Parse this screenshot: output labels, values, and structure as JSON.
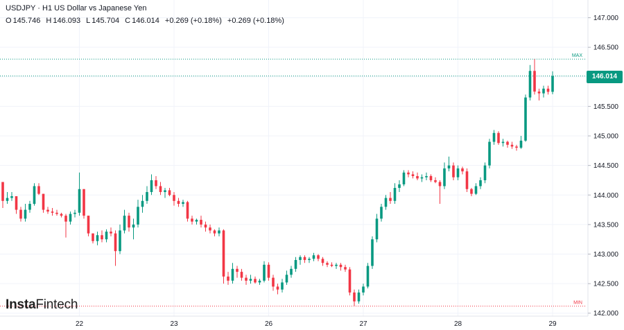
{
  "header": {
    "symbol": "USDJPY",
    "separator": "·",
    "interval": "H1",
    "description": "US Dollar vs Japanese Yen",
    "ohlc": [
      {
        "key": "O",
        "value": "145.746"
      },
      {
        "key": "H",
        "value": "146.093"
      },
      {
        "key": "L",
        "value": "145.704"
      },
      {
        "key": "C",
        "value": "146.014"
      }
    ],
    "change": "+0.269 (+0.18%)",
    "change_repeat": "+0.269 (+0.18%)"
  },
  "price_label": "146.014",
  "logo": {
    "part1": "Insta",
    "part2": "Fintech"
  },
  "colors": {
    "up": "#089981",
    "down": "#f23645",
    "max_line": "#089981",
    "min_line": "#f23645",
    "grid": "#f0f3fa"
  },
  "chart_data": {
    "type": "candlestick",
    "y_ticks": [
      "142.000",
      "142.500",
      "143.000",
      "143.500",
      "144.000",
      "144.500",
      "145.000",
      "145.500",
      "146.000",
      "146.500",
      "147.000"
    ],
    "ylim": [
      141.95,
      147.3
    ],
    "x_ticks": [
      {
        "label": "22",
        "index": 17
      },
      {
        "label": "23",
        "index": 38
      },
      {
        "label": "26",
        "index": 59
      },
      {
        "label": "27",
        "index": 80
      },
      {
        "label": "28",
        "index": 101
      },
      {
        "label": "29",
        "index": 122
      }
    ],
    "max": {
      "label": "MAX",
      "value": 146.3
    },
    "min": {
      "label": "MIN",
      "value": 142.12
    },
    "last_price": 146.014,
    "candles": [
      [
        144.22,
        144.22,
        143.78,
        143.9
      ],
      [
        143.9,
        144.05,
        143.85,
        143.95
      ],
      [
        143.95,
        144.05,
        143.9,
        143.98
      ],
      [
        143.98,
        143.98,
        143.68,
        143.75
      ],
      [
        143.75,
        143.8,
        143.55,
        143.6
      ],
      [
        143.6,
        143.85,
        143.55,
        143.75
      ],
      [
        143.75,
        143.9,
        143.7,
        143.85
      ],
      [
        143.85,
        144.2,
        143.82,
        144.15
      ],
      [
        144.15,
        144.2,
        144.0,
        144.02
      ],
      [
        144.02,
        144.02,
        143.7,
        143.75
      ],
      [
        143.75,
        143.8,
        143.68,
        143.72
      ],
      [
        143.72,
        143.78,
        143.65,
        143.7
      ],
      [
        143.7,
        143.75,
        143.65,
        143.68
      ],
      [
        143.68,
        143.7,
        143.62,
        143.65
      ],
      [
        143.65,
        143.68,
        143.28,
        143.55
      ],
      [
        143.55,
        143.72,
        143.5,
        143.68
      ],
      [
        143.68,
        143.75,
        143.62,
        143.7
      ],
      [
        143.7,
        144.38,
        143.65,
        144.1
      ],
      [
        144.1,
        144.1,
        143.6,
        143.65
      ],
      [
        143.65,
        143.65,
        143.3,
        143.35
      ],
      [
        143.35,
        143.35,
        143.18,
        143.22
      ],
      [
        143.22,
        143.38,
        143.15,
        143.32
      ],
      [
        143.32,
        143.4,
        143.2,
        143.25
      ],
      [
        143.25,
        143.42,
        143.2,
        143.38
      ],
      [
        143.38,
        143.45,
        143.3,
        143.35
      ],
      [
        143.35,
        143.4,
        142.8,
        143.05
      ],
      [
        143.05,
        143.5,
        143.0,
        143.4
      ],
      [
        143.4,
        143.75,
        143.35,
        143.65
      ],
      [
        143.65,
        143.7,
        143.38,
        143.45
      ],
      [
        143.45,
        143.6,
        143.25,
        143.5
      ],
      [
        143.5,
        143.92,
        143.45,
        143.8
      ],
      [
        143.8,
        144.0,
        143.7,
        143.9
      ],
      [
        143.9,
        144.15,
        143.85,
        144.05
      ],
      [
        144.05,
        144.35,
        144.0,
        144.25
      ],
      [
        144.25,
        144.32,
        144.1,
        144.15
      ],
      [
        144.15,
        144.22,
        144.0,
        144.05
      ],
      [
        144.05,
        144.12,
        143.95,
        144.08
      ],
      [
        144.08,
        144.12,
        143.98,
        144.0
      ],
      [
        144.0,
        144.05,
        143.82,
        143.9
      ],
      [
        143.9,
        143.95,
        143.8,
        143.85
      ],
      [
        143.85,
        143.92,
        143.8,
        143.88
      ],
      [
        143.88,
        143.9,
        143.55,
        143.6
      ],
      [
        143.6,
        143.65,
        143.5,
        143.55
      ],
      [
        143.55,
        143.6,
        143.5,
        143.58
      ],
      [
        143.58,
        143.65,
        143.45,
        143.5
      ],
      [
        143.5,
        143.55,
        143.38,
        143.45
      ],
      [
        143.45,
        143.5,
        143.35,
        143.4
      ],
      [
        143.4,
        143.42,
        143.3,
        143.35
      ],
      [
        143.35,
        143.45,
        143.3,
        143.4
      ],
      [
        143.4,
        143.42,
        142.5,
        142.62
      ],
      [
        142.62,
        142.7,
        142.48,
        142.55
      ],
      [
        142.55,
        142.85,
        142.5,
        142.75
      ],
      [
        142.75,
        142.8,
        142.6,
        142.7
      ],
      [
        142.7,
        142.75,
        142.55,
        142.6
      ],
      [
        142.6,
        142.65,
        142.48,
        142.55
      ],
      [
        142.55,
        142.65,
        142.5,
        142.58
      ],
      [
        142.58,
        142.62,
        142.5,
        142.52
      ],
      [
        142.52,
        142.58,
        142.48,
        142.55
      ],
      [
        142.55,
        142.88,
        142.52,
        142.82
      ],
      [
        142.82,
        142.86,
        142.55,
        142.6
      ],
      [
        142.6,
        142.65,
        142.38,
        142.45
      ],
      [
        142.45,
        142.5,
        142.32,
        142.4
      ],
      [
        142.4,
        142.58,
        142.35,
        142.52
      ],
      [
        142.52,
        142.72,
        142.48,
        142.65
      ],
      [
        142.65,
        142.8,
        142.6,
        142.75
      ],
      [
        142.75,
        142.95,
        142.7,
        142.9
      ],
      [
        142.9,
        142.98,
        142.82,
        142.95
      ],
      [
        142.95,
        142.98,
        142.85,
        142.9
      ],
      [
        142.9,
        142.95,
        142.85,
        142.92
      ],
      [
        142.92,
        143.02,
        142.88,
        142.98
      ],
      [
        142.98,
        143.0,
        142.88,
        142.92
      ],
      [
        142.92,
        142.95,
        142.8,
        142.85
      ],
      [
        142.85,
        142.88,
        142.78,
        142.82
      ],
      [
        142.82,
        142.86,
        142.78,
        142.8
      ],
      [
        142.8,
        142.85,
        142.75,
        142.82
      ],
      [
        142.82,
        142.85,
        142.72,
        142.78
      ],
      [
        142.78,
        142.82,
        142.7,
        142.74
      ],
      [
        142.74,
        142.78,
        142.3,
        142.35
      ],
      [
        142.35,
        142.4,
        142.12,
        142.2
      ],
      [
        142.2,
        142.4,
        142.16,
        142.35
      ],
      [
        142.35,
        142.5,
        142.3,
        142.45
      ],
      [
        142.45,
        142.85,
        142.42,
        142.8
      ],
      [
        142.8,
        143.3,
        142.75,
        143.25
      ],
      [
        143.25,
        143.68,
        143.2,
        143.6
      ],
      [
        143.6,
        143.85,
        143.55,
        143.8
      ],
      [
        143.8,
        144.0,
        143.75,
        143.95
      ],
      [
        143.95,
        144.05,
        143.85,
        143.9
      ],
      [
        143.9,
        144.2,
        143.85,
        144.12
      ],
      [
        144.12,
        144.25,
        144.05,
        144.18
      ],
      [
        144.18,
        144.42,
        144.15,
        144.38
      ],
      [
        144.38,
        144.42,
        144.3,
        144.35
      ],
      [
        144.35,
        144.4,
        144.28,
        144.32
      ],
      [
        144.32,
        144.38,
        144.25,
        144.28
      ],
      [
        144.28,
        144.35,
        144.22,
        144.3
      ],
      [
        144.3,
        144.38,
        144.25,
        144.32
      ],
      [
        144.32,
        144.35,
        144.22,
        144.25
      ],
      [
        144.25,
        144.3,
        144.2,
        144.22
      ],
      [
        144.22,
        144.25,
        143.85,
        144.15
      ],
      [
        144.15,
        144.55,
        144.1,
        144.45
      ],
      [
        144.45,
        144.65,
        144.4,
        144.5
      ],
      [
        144.5,
        144.55,
        144.25,
        144.3
      ],
      [
        144.3,
        144.5,
        144.25,
        144.45
      ],
      [
        144.45,
        144.48,
        144.35,
        144.4
      ],
      [
        144.4,
        144.45,
        144.05,
        144.1
      ],
      [
        144.1,
        144.12,
        143.98,
        144.02
      ],
      [
        144.02,
        144.2,
        144.0,
        144.15
      ],
      [
        144.15,
        144.3,
        144.1,
        144.25
      ],
      [
        144.25,
        144.55,
        144.2,
        144.5
      ],
      [
        144.5,
        144.95,
        144.45,
        144.9
      ],
      [
        144.9,
        145.1,
        144.85,
        145.05
      ],
      [
        145.05,
        145.08,
        144.85,
        144.88
      ],
      [
        144.88,
        144.95,
        144.82,
        144.9
      ],
      [
        144.9,
        144.92,
        144.8,
        144.85
      ],
      [
        144.85,
        144.9,
        144.78,
        144.82
      ],
      [
        144.82,
        144.85,
        144.75,
        144.8
      ],
      [
        144.8,
        145.0,
        144.78,
        144.92
      ],
      [
        144.92,
        145.7,
        144.9,
        145.65
      ],
      [
        145.65,
        146.2,
        145.6,
        146.1
      ],
      [
        146.1,
        146.3,
        145.7,
        145.75
      ],
      [
        145.75,
        145.8,
        145.6,
        145.72
      ],
      [
        145.72,
        145.85,
        145.65,
        145.8
      ],
      [
        145.8,
        145.85,
        145.7,
        145.746
      ],
      [
        145.746,
        146.093,
        145.704,
        146.014
      ]
    ]
  }
}
